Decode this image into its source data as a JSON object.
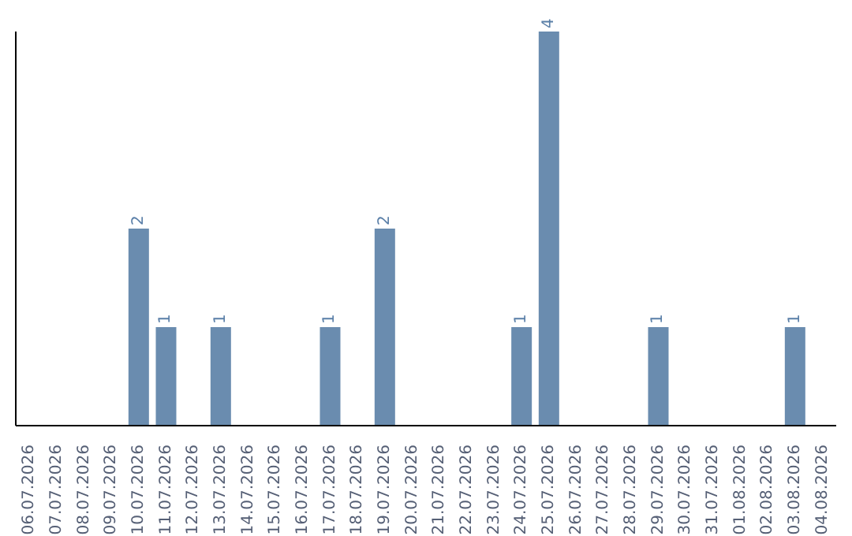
{
  "chart_data": {
    "type": "bar",
    "categories": [
      "06.07.2026",
      "07.07.2026",
      "08.07.2026",
      "09.07.2026",
      "10.07.2026",
      "11.07.2026",
      "12.07.2026",
      "13.07.2026",
      "14.07.2026",
      "15.07.2026",
      "16.07.2026",
      "17.07.2026",
      "18.07.2026",
      "19.07.2026",
      "20.07.2026",
      "21.07.2026",
      "22.07.2026",
      "23.07.2026",
      "24.07.2026",
      "25.07.2026",
      "26.07.2026",
      "27.07.2026",
      "28.07.2026",
      "29.07.2026",
      "30.07.2026",
      "31.07.2026",
      "01.08.2026",
      "02.08.2026",
      "03.08.2026",
      "04.08.2026"
    ],
    "values": [
      0,
      0,
      0,
      0,
      2,
      1,
      0,
      1,
      0,
      0,
      0,
      1,
      0,
      2,
      0,
      0,
      0,
      0,
      1,
      4,
      0,
      0,
      0,
      1,
      0,
      0,
      0,
      0,
      1,
      0
    ],
    "value_labels": [
      null,
      null,
      null,
      null,
      "2",
      "1",
      null,
      "1",
      null,
      null,
      null,
      "1",
      null,
      "2",
      null,
      null,
      null,
      null,
      "1",
      "4",
      null,
      null,
      null,
      "1",
      null,
      null,
      null,
      null,
      "1",
      null
    ],
    "color": "#6a8caf"
  }
}
